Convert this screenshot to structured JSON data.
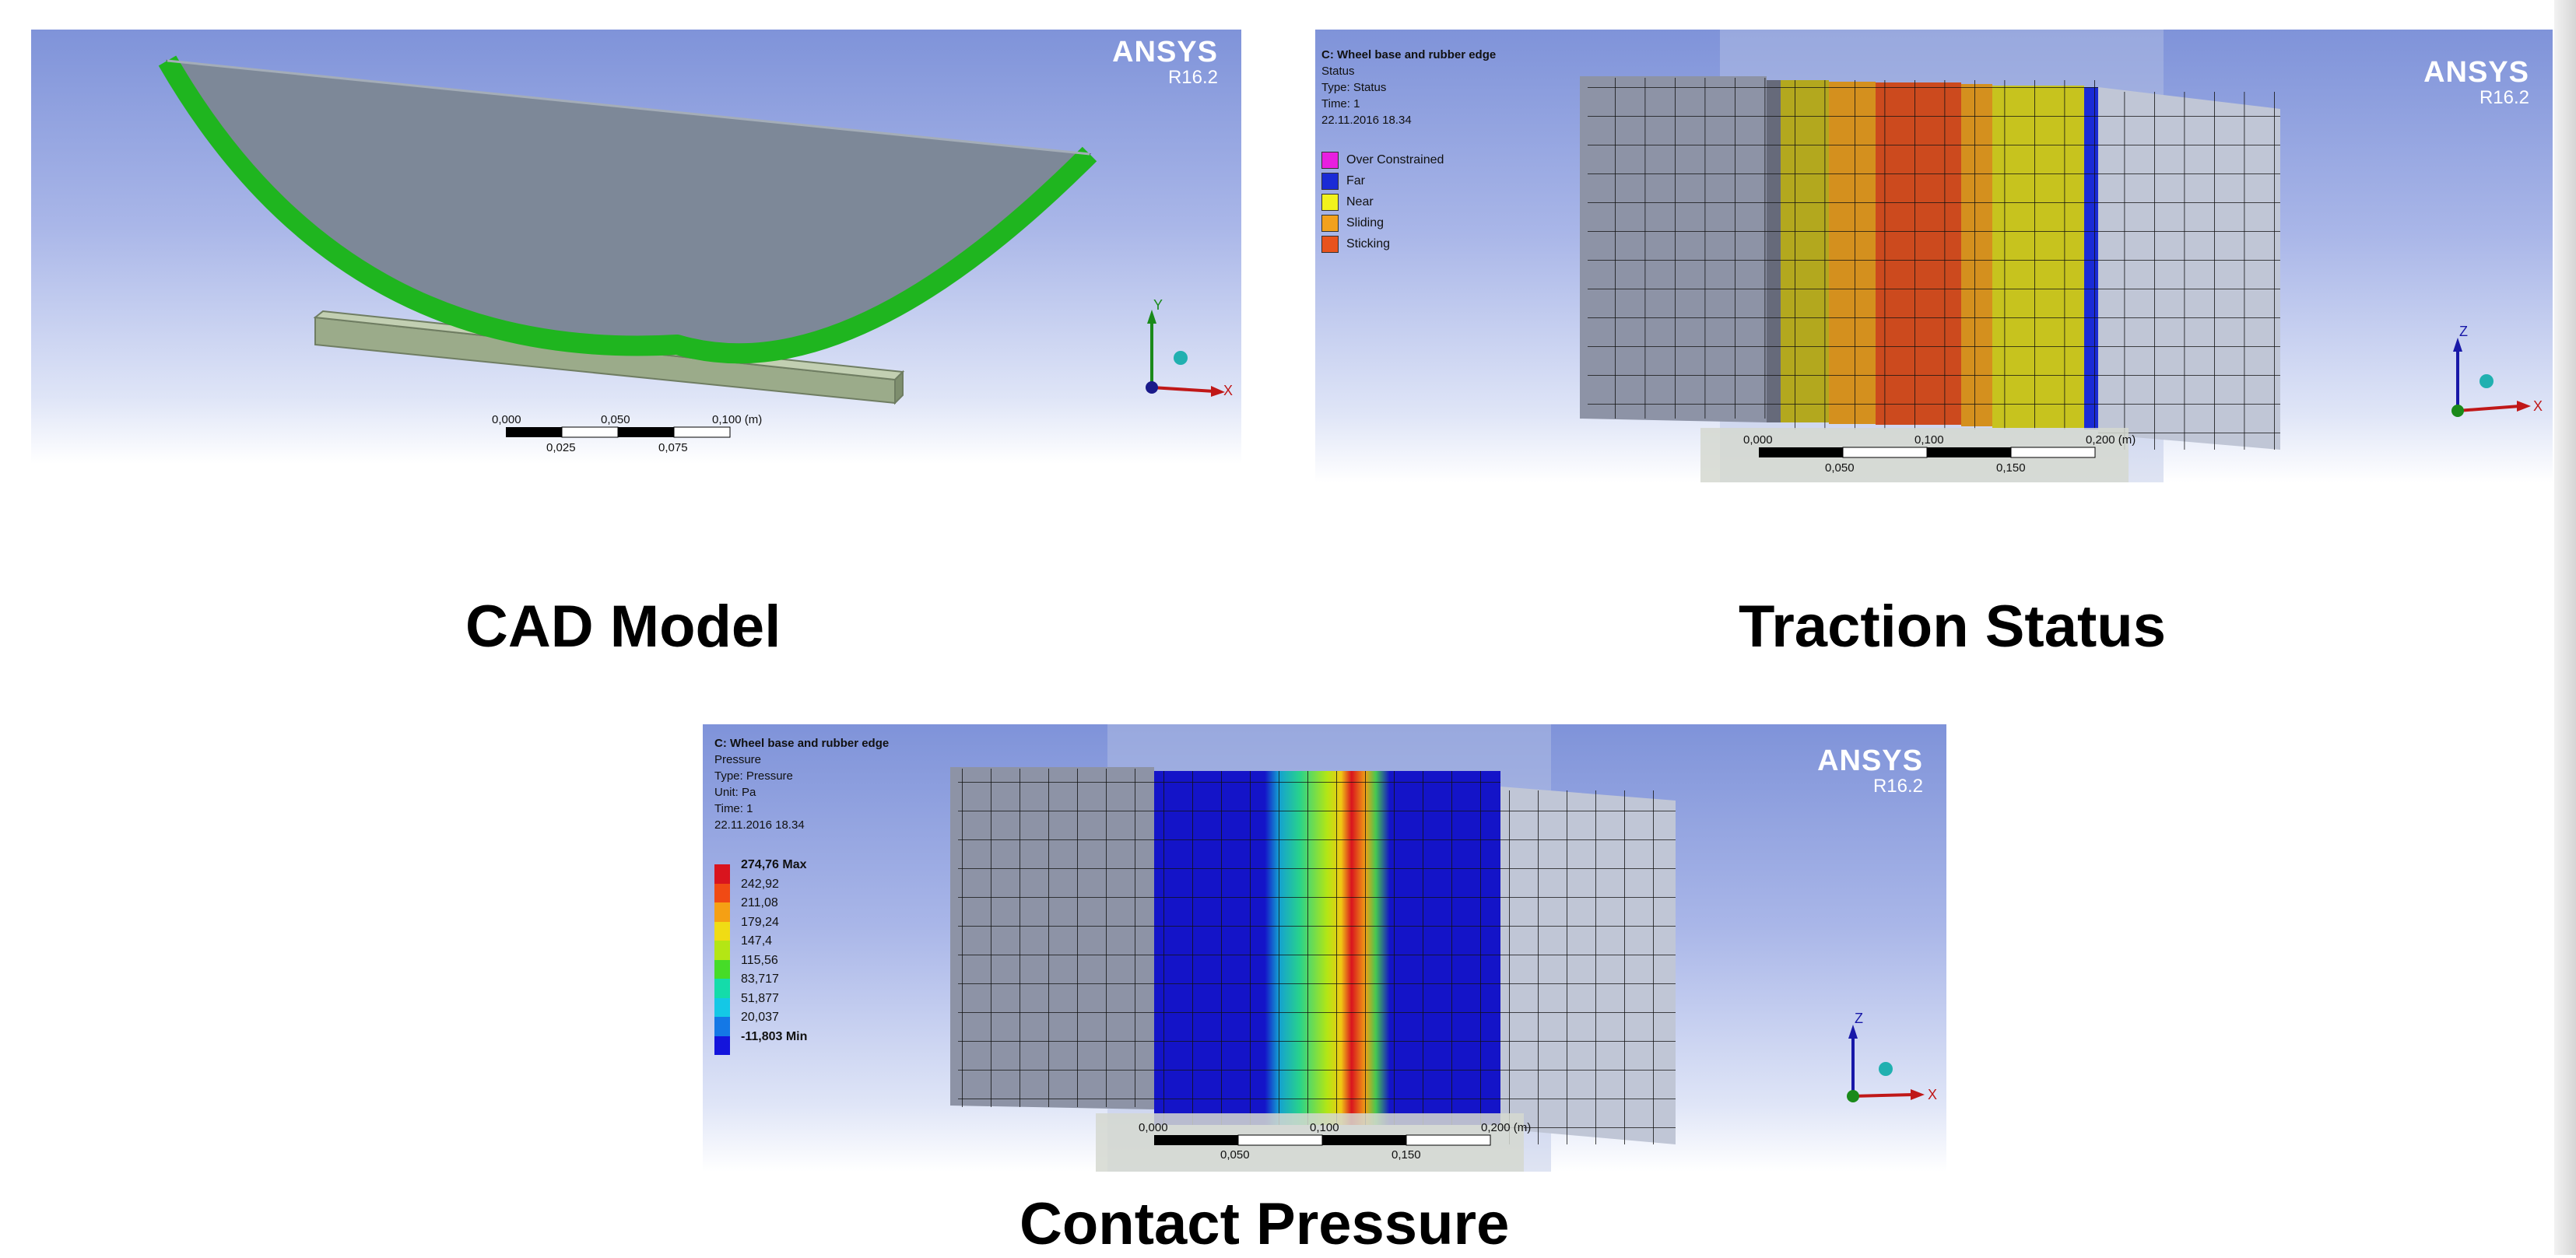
{
  "branding": {
    "name": "ANSYS",
    "version": "R16.2"
  },
  "panels": {
    "cad": {
      "caption": "CAD Model",
      "axes": {
        "y": "Y",
        "x": "X"
      },
      "scale": {
        "top": [
          "0,000",
          "0,050",
          "0,100 (m)"
        ],
        "bottom": [
          "0,025",
          "0,075"
        ]
      }
    },
    "traction": {
      "caption": "Traction Status",
      "info": [
        "C: Wheel base and rubber edge",
        "Status",
        "Type: Status",
        "Time: 1",
        "22.11.2016 18.34"
      ],
      "legend": [
        {
          "label": "Over Constrained",
          "color": "#e81ee0"
        },
        {
          "label": "Far",
          "color": "#1a2bd6"
        },
        {
          "label": "Near",
          "color": "#f2f21e"
        },
        {
          "label": "Sliding",
          "color": "#f2a11e"
        },
        {
          "label": "Sticking",
          "color": "#e8531e"
        }
      ],
      "axes": {
        "z": "Z",
        "x": "X"
      },
      "scale": {
        "top": [
          "0,000",
          "0,100",
          "0,200 (m)"
        ],
        "bottom": [
          "0,050",
          "0,150"
        ]
      }
    },
    "pressure": {
      "caption": "Contact Pressure",
      "info": [
        "C: Wheel base and rubber edge",
        "Pressure",
        "Type: Pressure",
        "Unit: Pa",
        "Time: 1",
        "22.11.2016 18.34"
      ],
      "legend": [
        {
          "label": "274,76 Max",
          "color": "#d9141e"
        },
        {
          "label": "242,92",
          "color": "#f04a14"
        },
        {
          "label": "211,08",
          "color": "#f5a014"
        },
        {
          "label": "179,24",
          "color": "#f0dc14"
        },
        {
          "label": "147,4",
          "color": "#b4e614"
        },
        {
          "label": "115,56",
          "color": "#46dc28"
        },
        {
          "label": "83,717",
          "color": "#14dcaa"
        },
        {
          "label": "51,877",
          "color": "#14c8e6"
        },
        {
          "label": "20,037",
          "color": "#1478e6"
        },
        {
          "label": "-11,803 Min",
          "color": "#1414dc"
        }
      ],
      "axes": {
        "z": "Z",
        "x": "X"
      },
      "scale": {
        "top": [
          "0,000",
          "0,100",
          "0,200 (m)"
        ],
        "bottom": [
          "0,050",
          "0,150"
        ]
      }
    }
  }
}
